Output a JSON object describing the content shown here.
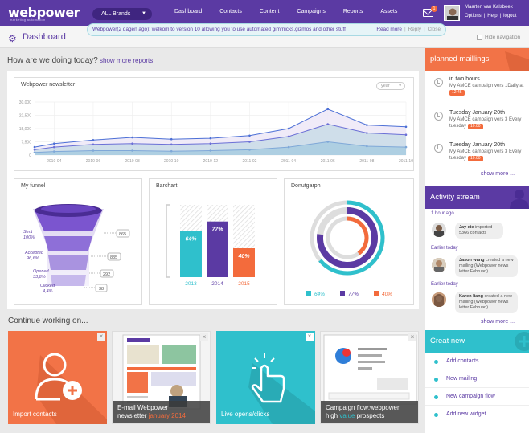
{
  "header": {
    "logo": "webpower",
    "logo_sub": "marketing automation",
    "brand_select": "ALL Brands",
    "nav": [
      "Dashboard",
      "Contacts",
      "Content",
      "Campaigns",
      "Reports",
      "Assets"
    ],
    "mail_count": "1",
    "user_name": "Maarten van Kalsbeek",
    "user_links": [
      "Options",
      "Help",
      "logout"
    ]
  },
  "notification": {
    "sender": "Webpower(2 dagen ago):",
    "message": "welkom to version 10 allowing you to use automated gimmicks,gizmos and other stuff",
    "read_more": "Read more",
    "reply": "Reply",
    "close": "Close"
  },
  "page": {
    "title": "Dashboard",
    "hide_navigation": "Hide navigation",
    "question": "How are we doing today?",
    "show_more_reports": "show more reports"
  },
  "newsletter": {
    "title": "Webpower newsletter",
    "period": "year",
    "y_ticks": [
      "30,000",
      "22,500",
      "15,000",
      "7,500",
      "0"
    ],
    "x_ticks": [
      "2010-04",
      "2010-06",
      "2010-08",
      "2010-10",
      "2010-12",
      "2011-02",
      "2011-04",
      "2011-06",
      "2011-08",
      "2011-10"
    ]
  },
  "chart_data": [
    {
      "type": "area",
      "title": "Webpower newsletter",
      "x": [
        "2010-03",
        "2010-04",
        "2010-06",
        "2010-08",
        "2010-10",
        "2010-12",
        "2011-02",
        "2011-04",
        "2011-06",
        "2011-08",
        "2011-10"
      ],
      "ylim": [
        0,
        30000
      ],
      "series": [
        {
          "values": [
            4500,
            6500,
            8500,
            10000,
            9000,
            9500,
            11000,
            15000,
            26000,
            17000,
            16000
          ]
        },
        {
          "values": [
            3000,
            4500,
            6000,
            6500,
            6000,
            6500,
            7500,
            10500,
            17500,
            12500,
            11500
          ]
        },
        {
          "values": [
            1500,
            2000,
            2500,
            2500,
            2200,
            2500,
            3000,
            4500,
            7500,
            5000,
            4500
          ]
        }
      ],
      "grid": true
    },
    {
      "type": "bar",
      "title": "Barchart",
      "categories": [
        "2013",
        "2014",
        "2015"
      ],
      "values": [
        64,
        77,
        40
      ],
      "ylim": [
        0,
        100
      ]
    },
    {
      "type": "pie",
      "title": "Donutgarph",
      "categories": [
        "64%",
        "77%",
        "40%"
      ],
      "values": [
        64,
        77,
        40
      ]
    }
  ],
  "funnel": {
    "title": "My funnel",
    "stages": [
      {
        "label": "Sent",
        "pct": "100%",
        "value": "865"
      },
      {
        "label": "Accepted",
        "pct": "96,6%",
        "value": "835"
      },
      {
        "label": "Opened",
        "pct": "33,8%",
        "value": "292"
      },
      {
        "label": "Clicked",
        "pct": "4,4%",
        "value": "38"
      }
    ]
  },
  "barchart": {
    "title": "Barchart",
    "labels": [
      "64%",
      "77%",
      "40%"
    ],
    "years": [
      "2013",
      "2014",
      "2015"
    ]
  },
  "donut": {
    "title": "Donutgarph",
    "legend": [
      "64%",
      "77%",
      "40%"
    ]
  },
  "colors": {
    "purple": "#5b3aa3",
    "teal": "#2fc0cc",
    "orange": "#f36b3c"
  },
  "continue": {
    "title": "Continue working on...",
    "cards": [
      "Import contacts",
      "E-mail Webpower",
      "newsletter",
      "january 2014",
      "Live opens/clicks",
      "Campaign flow:webpower",
      "high",
      "value",
      "prospects"
    ]
  },
  "planned": {
    "title": "planned maillings",
    "items": [
      {
        "time": "in two hours",
        "desc": "My AMCE campaign vers 1Daily at",
        "badge": "12:45"
      },
      {
        "time": "Tuesday January 20th",
        "desc": "My AMCE campaign vers 3 Every",
        "day": "tuesday",
        "badge": "10:00"
      },
      {
        "time": "Tuesday January 20th",
        "desc": "My AMCE campaign vers 3 Every",
        "day": "tuesday",
        "badge": "10:00"
      }
    ],
    "more": "show more ..."
  },
  "activity": {
    "title": "Activity stream",
    "groups": [
      {
        "when": "1 hour ago",
        "who": "Jay xie",
        "text": "imported 5366 contacts"
      },
      {
        "when": "Earlier today",
        "who": "Jason wang",
        "text": "created a new mailing (Webpower news letter Februari)"
      },
      {
        "when": "Earlier today",
        "who": "Karen liang",
        "text": "created a new mailing (Webpower news letter Februari)"
      }
    ],
    "more": "show more ..."
  },
  "create_new": {
    "title": "Creat new",
    "items": [
      "Add contacts",
      "New mailing",
      "New campaign flow",
      "Add new widget"
    ]
  }
}
